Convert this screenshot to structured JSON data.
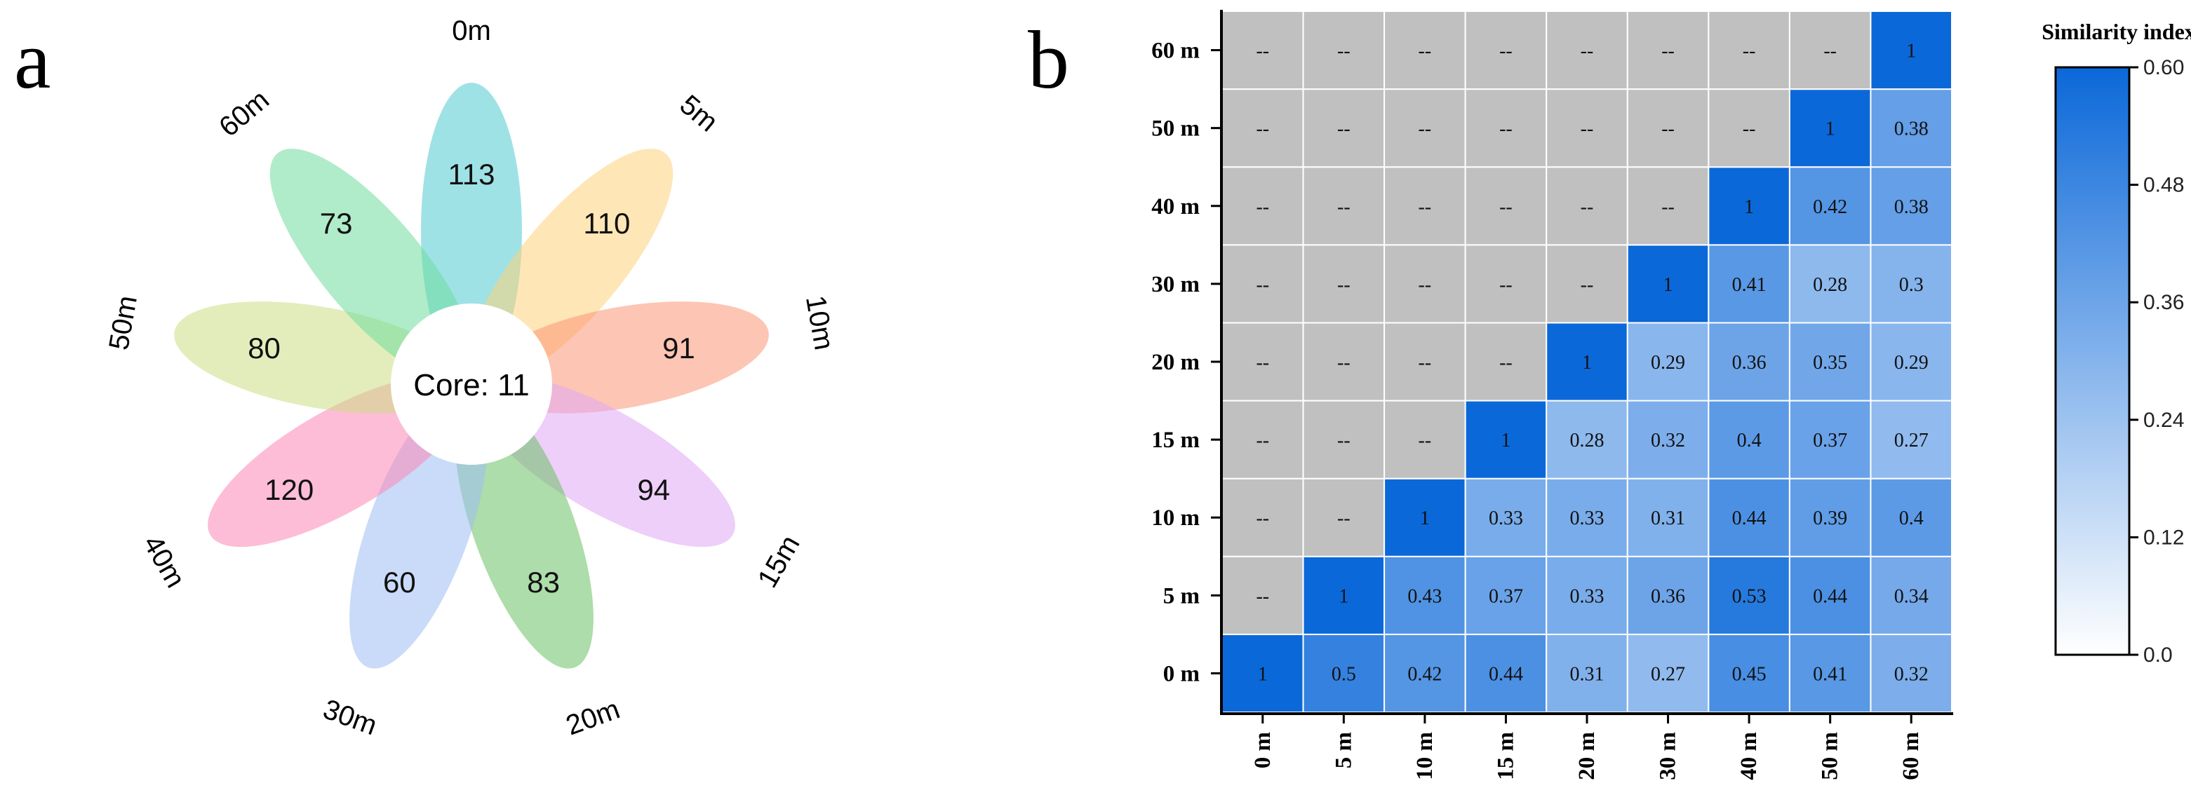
{
  "chart_data": [
    {
      "type": "flower",
      "panel_label": "a",
      "core_label": "Core: 11",
      "petals": [
        {
          "label": "0m",
          "value": 113,
          "color": "#4ecbd2"
        },
        {
          "label": "5m",
          "value": 110,
          "color": "#fdd27a"
        },
        {
          "label": "10m",
          "value": 91,
          "color": "#fb9574"
        },
        {
          "label": "15m",
          "value": 94,
          "color": "#e0a8f4"
        },
        {
          "label": "20m",
          "value": 83,
          "color": "#6ac164"
        },
        {
          "label": "30m",
          "value": 60,
          "color": "#9dbdf3"
        },
        {
          "label": "40m",
          "value": 120,
          "color": "#fb86b4"
        },
        {
          "label": "50m",
          "value": 80,
          "color": "#ccdf85"
        },
        {
          "label": "60m",
          "value": 73,
          "color": "#6fdc9c"
        }
      ]
    },
    {
      "type": "heatmap",
      "panel_label": "b",
      "title": "Similarity index",
      "x_categories": [
        "0 m",
        "5 m",
        "10 m",
        "15 m",
        "20 m",
        "30 m",
        "40 m",
        "50 m",
        "60 m"
      ],
      "y_categories": [
        "0 m",
        "5 m",
        "10 m",
        "15 m",
        "20 m",
        "30 m",
        "40 m",
        "50 m",
        "60 m"
      ],
      "missing_label": "--",
      "values": [
        [
          1,
          0.5,
          0.42,
          0.44,
          0.31,
          0.27,
          0.45,
          0.41,
          0.32
        ],
        [
          null,
          1,
          0.43,
          0.37,
          0.33,
          0.36,
          0.53,
          0.44,
          0.34
        ],
        [
          null,
          null,
          1,
          0.33,
          0.33,
          0.31,
          0.44,
          0.39,
          0.4
        ],
        [
          null,
          null,
          null,
          1,
          0.28,
          0.32,
          0.4,
          0.37,
          0.27
        ],
        [
          null,
          null,
          null,
          null,
          1,
          0.29,
          0.36,
          0.35,
          0.29
        ],
        [
          null,
          null,
          null,
          null,
          null,
          1,
          0.41,
          0.28,
          0.3
        ],
        [
          null,
          null,
          null,
          null,
          null,
          null,
          1,
          0.42,
          0.38
        ],
        [
          null,
          null,
          null,
          null,
          null,
          null,
          null,
          1,
          0.38
        ],
        [
          null,
          null,
          null,
          null,
          null,
          null,
          null,
          null,
          1
        ]
      ],
      "colorbar": {
        "range": [
          0.0,
          0.6
        ],
        "ticks": [
          "0.0",
          "0.12",
          "0.24",
          "0.36",
          "0.48",
          "0.60"
        ],
        "low_color": "#ffffff",
        "high_color": "#0b68d9",
        "missing_color": "#c0c0c0"
      }
    }
  ]
}
